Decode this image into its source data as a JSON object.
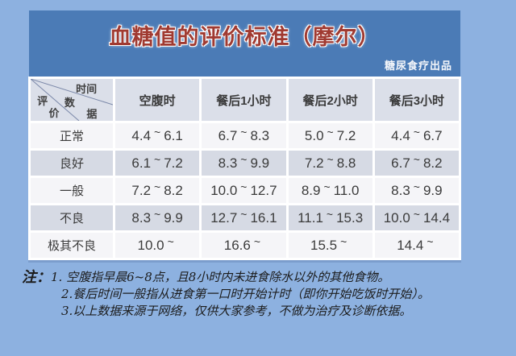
{
  "theme": {
    "page_bg": "#8db1e0",
    "band_bg": "#4b7bb6",
    "title_color": "#a03a31",
    "header_cell_bg": "#dbdfe9",
    "row_light": "#f5f5f8",
    "row_dark": "#d6dae4",
    "text_dark": "#3b3b3b",
    "note_color": "#1c1c1c"
  },
  "header": {
    "title": "血糖值的评价标准（摩尔）",
    "byline": "糖尿食疗出品"
  },
  "table": {
    "corner": {
      "time_label": "时间",
      "data_label_chars": [
        "数",
        "据"
      ],
      "eval_label_chars": [
        "评",
        "价"
      ]
    },
    "columns": [
      "空腹时",
      "餐后1小时",
      "餐后2小时",
      "餐后3小时"
    ],
    "rows": [
      {
        "label": "正常",
        "values": [
          "4.4~6.1",
          "6.7~8.3",
          "5.0~7.2",
          "4.4~6.7"
        ]
      },
      {
        "label": "良好",
        "values": [
          "6.1~7.2",
          "8.3~9.9",
          "7.2~8.8",
          "6.7~8.2"
        ]
      },
      {
        "label": "一般",
        "values": [
          "7.2~8.2",
          "10.0~12.7",
          "8.9~11.0",
          "8.3~9.9"
        ]
      },
      {
        "label": "不良",
        "values": [
          "8.3~9.9",
          "12.7~16.1",
          "11.1~15.3",
          "10.0~14.4"
        ]
      },
      {
        "label": "极其不良",
        "values": [
          "10.0~",
          "16.6~",
          "15.5~",
          "14.4~"
        ]
      }
    ]
  },
  "notes": {
    "label": "注：",
    "items": [
      "1. 空腹指早晨6~8点，且8小时内未进食除水以外的其他食物。",
      "2.餐后时间一般指从进食第一口时开始计时（即你开始吃饭时开始）。",
      "3.以上数据来源于网络，仅供大家参考，不做为治疗及诊断依据。"
    ]
  }
}
